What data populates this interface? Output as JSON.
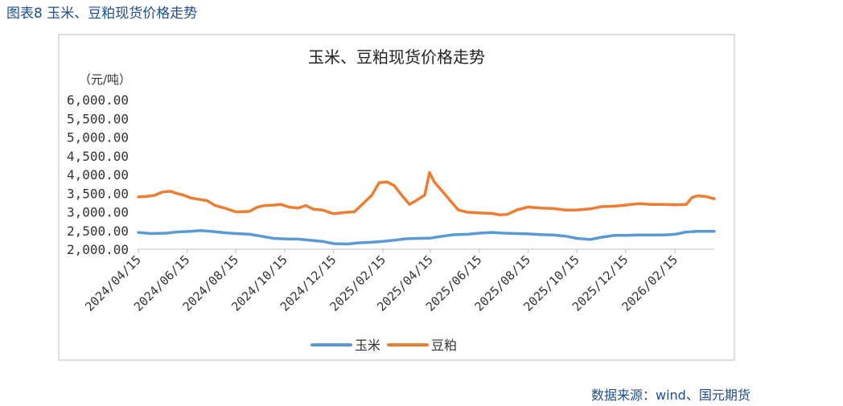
{
  "figure_caption": "图表8 玉米、豆粕现货价格走势",
  "source": "数据来源：wind、国元期货",
  "colors": {
    "corn": "#5b9bd5",
    "meal": "#ed7d31",
    "frame": "#bfbfbf",
    "axis": "#bfbfbf",
    "caption": "#1f4e8c"
  },
  "chart_data": {
    "type": "line",
    "title": "玉米、豆粕现货价格走势",
    "ylabel": "（元/吨）",
    "ylim": [
      2000,
      6000
    ],
    "yticks": [
      2000,
      2500,
      3000,
      3500,
      4000,
      4500,
      5000,
      5500,
      6000
    ],
    "ytick_labels": [
      "2,000.00",
      "2,500.00",
      "3,000.00",
      "3,500.00",
      "4,000.00",
      "4,500.00",
      "5,000.00",
      "5,500.00",
      "6,000.00"
    ],
    "xlim": [
      "2024-04-15",
      "2026-04-05"
    ],
    "xticks": [
      "2024-04-15",
      "2024-06-15",
      "2024-08-15",
      "2024-10-15",
      "2024-12-15",
      "2025-02-15",
      "2025-04-15",
      "2025-06-15",
      "2025-08-15",
      "2025-10-15",
      "2025-12-15",
      "2026-02-15"
    ],
    "xtick_labels": [
      "2024/04/15",
      "2024/06/15",
      "2024/08/15",
      "2024/10/15",
      "2024/12/15",
      "2025/02/15",
      "2025/04/15",
      "2025/06/15",
      "2025/08/15",
      "2025/10/15",
      "2025/12/15",
      "2026/02/15"
    ],
    "legend_position": "bottom",
    "grid": false,
    "series": [
      {
        "name": "玉米",
        "points": [
          [
            "2024-04-15",
            2450
          ],
          [
            "2024-05-01",
            2420
          ],
          [
            "2024-05-20",
            2430
          ],
          [
            "2024-06-01",
            2460
          ],
          [
            "2024-06-20",
            2480
          ],
          [
            "2024-07-01",
            2500
          ],
          [
            "2024-07-15",
            2480
          ],
          [
            "2024-08-01",
            2440
          ],
          [
            "2024-08-15",
            2420
          ],
          [
            "2024-09-01",
            2400
          ],
          [
            "2024-09-15",
            2350
          ],
          [
            "2024-10-01",
            2290
          ],
          [
            "2024-10-20",
            2270
          ],
          [
            "2024-11-01",
            2270
          ],
          [
            "2024-11-15",
            2240
          ],
          [
            "2024-12-01",
            2210
          ],
          [
            "2024-12-15",
            2150
          ],
          [
            "2025-01-01",
            2140
          ],
          [
            "2025-01-15",
            2170
          ],
          [
            "2025-02-01",
            2190
          ],
          [
            "2025-02-15",
            2210
          ],
          [
            "2025-03-01",
            2240
          ],
          [
            "2025-03-15",
            2280
          ],
          [
            "2025-04-01",
            2290
          ],
          [
            "2025-04-15",
            2300
          ],
          [
            "2025-05-01",
            2350
          ],
          [
            "2025-05-15",
            2390
          ],
          [
            "2025-06-01",
            2400
          ],
          [
            "2025-06-15",
            2430
          ],
          [
            "2025-07-01",
            2450
          ],
          [
            "2025-07-15",
            2430
          ],
          [
            "2025-08-01",
            2420
          ],
          [
            "2025-08-15",
            2410
          ],
          [
            "2025-09-01",
            2390
          ],
          [
            "2025-09-15",
            2380
          ],
          [
            "2025-10-01",
            2350
          ],
          [
            "2025-10-15",
            2290
          ],
          [
            "2025-11-01",
            2260
          ],
          [
            "2025-11-15",
            2320
          ],
          [
            "2025-12-01",
            2370
          ],
          [
            "2025-12-15",
            2370
          ],
          [
            "2026-01-01",
            2380
          ],
          [
            "2026-01-15",
            2380
          ],
          [
            "2026-02-01",
            2380
          ],
          [
            "2026-02-15",
            2400
          ],
          [
            "2026-03-01",
            2460
          ],
          [
            "2026-03-15",
            2480
          ],
          [
            "2026-04-05",
            2480
          ]
        ]
      },
      {
        "name": "豆粕",
        "points": [
          [
            "2024-04-15",
            3400
          ],
          [
            "2024-04-25",
            3410
          ],
          [
            "2024-05-05",
            3440
          ],
          [
            "2024-05-15",
            3530
          ],
          [
            "2024-05-25",
            3550
          ],
          [
            "2024-06-01",
            3500
          ],
          [
            "2024-06-10",
            3450
          ],
          [
            "2024-06-20",
            3370
          ],
          [
            "2024-07-01",
            3330
          ],
          [
            "2024-07-10",
            3300
          ],
          [
            "2024-07-20",
            3170
          ],
          [
            "2024-08-01",
            3100
          ],
          [
            "2024-08-15",
            3000
          ],
          [
            "2024-09-01",
            3010
          ],
          [
            "2024-09-10",
            3120
          ],
          [
            "2024-09-20",
            3170
          ],
          [
            "2024-10-01",
            3180
          ],
          [
            "2024-10-10",
            3200
          ],
          [
            "2024-10-20",
            3130
          ],
          [
            "2024-11-01",
            3100
          ],
          [
            "2024-11-10",
            3170
          ],
          [
            "2024-11-20",
            3070
          ],
          [
            "2024-12-01",
            3050
          ],
          [
            "2024-12-15",
            2950
          ],
          [
            "2025-01-01",
            2990
          ],
          [
            "2025-01-10",
            3000
          ],
          [
            "2025-01-20",
            3200
          ],
          [
            "2025-02-01",
            3450
          ],
          [
            "2025-02-10",
            3780
          ],
          [
            "2025-02-20",
            3800
          ],
          [
            "2025-03-01",
            3700
          ],
          [
            "2025-03-10",
            3450
          ],
          [
            "2025-03-20",
            3200
          ],
          [
            "2025-04-01",
            3350
          ],
          [
            "2025-04-08",
            3450
          ],
          [
            "2025-04-14",
            4050
          ],
          [
            "2025-04-20",
            3800
          ],
          [
            "2025-04-28",
            3600
          ],
          [
            "2025-05-10",
            3300
          ],
          [
            "2025-05-20",
            3050
          ],
          [
            "2025-06-01",
            2990
          ],
          [
            "2025-06-15",
            2970
          ],
          [
            "2025-07-01",
            2960
          ],
          [
            "2025-07-10",
            2920
          ],
          [
            "2025-07-20",
            2930
          ],
          [
            "2025-08-01",
            3050
          ],
          [
            "2025-08-15",
            3130
          ],
          [
            "2025-09-01",
            3100
          ],
          [
            "2025-09-15",
            3090
          ],
          [
            "2025-10-01",
            3050
          ],
          [
            "2025-10-15",
            3050
          ],
          [
            "2025-11-01",
            3080
          ],
          [
            "2025-11-15",
            3140
          ],
          [
            "2025-12-01",
            3150
          ],
          [
            "2025-12-15",
            3180
          ],
          [
            "2026-01-01",
            3220
          ],
          [
            "2026-01-15",
            3200
          ],
          [
            "2026-02-01",
            3200
          ],
          [
            "2026-02-15",
            3190
          ],
          [
            "2026-03-01",
            3200
          ],
          [
            "2026-03-08",
            3380
          ],
          [
            "2026-03-15",
            3430
          ],
          [
            "2026-03-25",
            3410
          ],
          [
            "2026-04-05",
            3350
          ]
        ]
      }
    ]
  }
}
